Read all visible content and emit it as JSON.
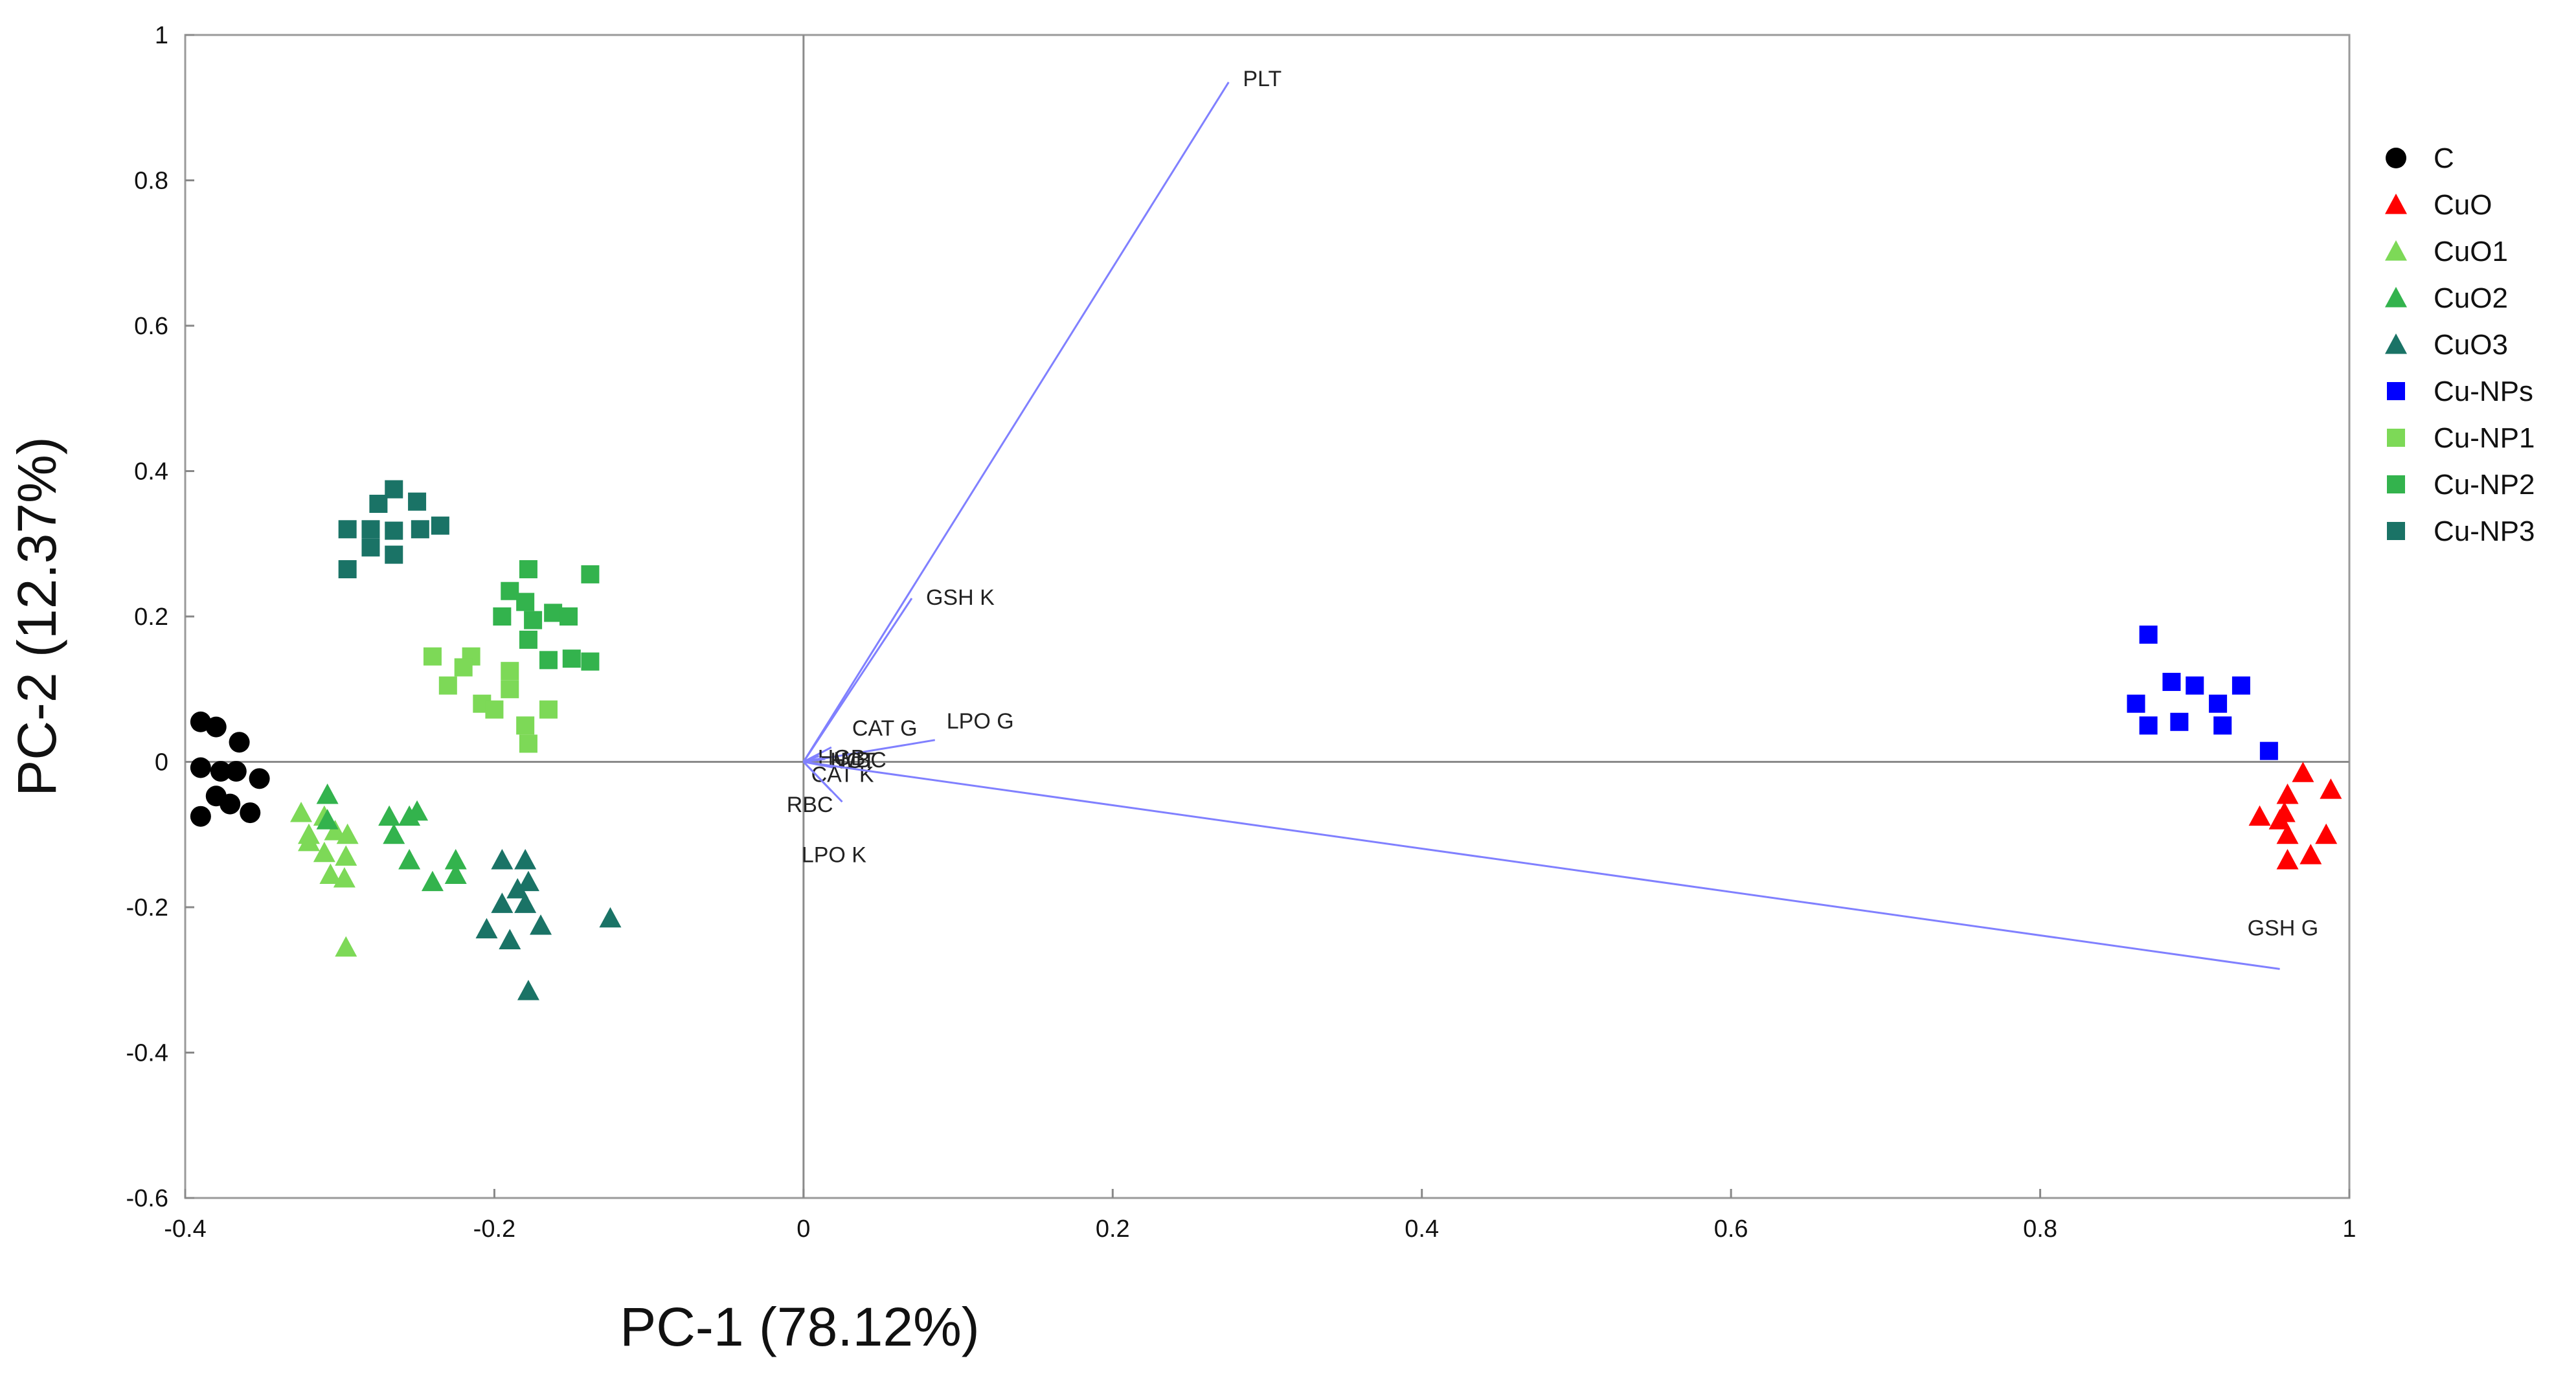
{
  "chart_data": {
    "type": "scatter",
    "xlabel": "PC-1 (78.12%)",
    "ylabel": "PC-2 (12.37%)",
    "xlim": [
      -0.4,
      1.0
    ],
    "ylim": [
      -0.6,
      1.0
    ],
    "xticks": [
      -0.4,
      -0.2,
      0,
      0.2,
      0.4,
      0.6,
      0.8,
      1
    ],
    "xtick_labels": [
      "-0.4",
      "-0.2",
      "0",
      "0.2",
      "0.4",
      "0.6",
      "0.8",
      "1"
    ],
    "yticks": [
      -0.6,
      -0.4,
      -0.2,
      0,
      0.2,
      0.4,
      0.6,
      0.8,
      1
    ],
    "ytick_labels": [
      "-0.6",
      "-0.4",
      "-0.2",
      "0",
      "0.2",
      "0.4",
      "0.6",
      "0.8",
      "1"
    ],
    "grid": false,
    "zero_lines": true,
    "legend_position": "right",
    "loading_color": "#8080ff",
    "series": [
      {
        "name": "C",
        "marker": "circle",
        "color": "#000000",
        "points": [
          [
            -0.39,
            0.055
          ],
          [
            -0.38,
            0.048
          ],
          [
            -0.365,
            0.027
          ],
          [
            -0.39,
            -0.008
          ],
          [
            -0.377,
            -0.013
          ],
          [
            -0.367,
            -0.013
          ],
          [
            -0.352,
            -0.023
          ],
          [
            -0.38,
            -0.047
          ],
          [
            -0.39,
            -0.075
          ],
          [
            -0.371,
            -0.058
          ],
          [
            -0.358,
            -0.07
          ]
        ]
      },
      {
        "name": "CuO",
        "marker": "triangle",
        "color": "#ff0000",
        "points": [
          [
            0.97,
            -0.015
          ],
          [
            0.988,
            -0.038
          ],
          [
            0.96,
            -0.045
          ],
          [
            0.942,
            -0.075
          ],
          [
            0.958,
            -0.07
          ],
          [
            0.96,
            -0.1
          ],
          [
            0.985,
            -0.1
          ],
          [
            0.975,
            -0.128
          ],
          [
            0.96,
            -0.135
          ],
          [
            0.955,
            -0.08
          ]
        ]
      },
      {
        "name": "CuO1",
        "marker": "triangle",
        "color": "#7dd957",
        "points": [
          [
            -0.325,
            -0.07
          ],
          [
            -0.31,
            -0.075
          ],
          [
            -0.32,
            -0.1
          ],
          [
            -0.32,
            -0.11
          ],
          [
            -0.303,
            -0.095
          ],
          [
            -0.295,
            -0.1
          ],
          [
            -0.31,
            -0.125
          ],
          [
            -0.296,
            -0.13
          ],
          [
            -0.306,
            -0.155
          ],
          [
            -0.297,
            -0.16
          ],
          [
            -0.296,
            -0.255
          ]
        ]
      },
      {
        "name": "CuO2",
        "marker": "triangle",
        "color": "#33b34d",
        "points": [
          [
            -0.308,
            -0.045
          ],
          [
            -0.308,
            -0.08
          ],
          [
            -0.268,
            -0.075
          ],
          [
            -0.255,
            -0.075
          ],
          [
            -0.25,
            -0.068
          ],
          [
            -0.265,
            -0.1
          ],
          [
            -0.255,
            -0.135
          ],
          [
            -0.24,
            -0.165
          ],
          [
            -0.225,
            -0.135
          ],
          [
            -0.225,
            -0.155
          ]
        ]
      },
      {
        "name": "CuO3",
        "marker": "triangle",
        "color": "#1a7366",
        "points": [
          [
            -0.195,
            -0.135
          ],
          [
            -0.18,
            -0.135
          ],
          [
            -0.185,
            -0.175
          ],
          [
            -0.178,
            -0.165
          ],
          [
            -0.195,
            -0.195
          ],
          [
            -0.18,
            -0.195
          ],
          [
            -0.205,
            -0.23
          ],
          [
            -0.19,
            -0.245
          ],
          [
            -0.17,
            -0.225
          ],
          [
            -0.125,
            -0.215
          ],
          [
            -0.178,
            -0.315
          ]
        ]
      },
      {
        "name": "Cu-NPs",
        "marker": "square",
        "color": "#0000ff",
        "points": [
          [
            0.87,
            0.175
          ],
          [
            0.885,
            0.11
          ],
          [
            0.9,
            0.105
          ],
          [
            0.93,
            0.105
          ],
          [
            0.862,
            0.08
          ],
          [
            0.915,
            0.08
          ],
          [
            0.87,
            0.05
          ],
          [
            0.89,
            0.055
          ],
          [
            0.918,
            0.05
          ],
          [
            0.948,
            0.015
          ]
        ]
      },
      {
        "name": "Cu-NP1",
        "marker": "square",
        "color": "#7dd957",
        "points": [
          [
            -0.24,
            0.145
          ],
          [
            -0.215,
            0.145
          ],
          [
            -0.22,
            0.13
          ],
          [
            -0.19,
            0.125
          ],
          [
            -0.23,
            0.105
          ],
          [
            -0.19,
            0.1
          ],
          [
            -0.208,
            0.08
          ],
          [
            -0.2,
            0.072
          ],
          [
            -0.165,
            0.072
          ],
          [
            -0.18,
            0.05
          ],
          [
            -0.178,
            0.025
          ]
        ]
      },
      {
        "name": "Cu-NP2",
        "marker": "square",
        "color": "#33b34d",
        "points": [
          [
            -0.178,
            0.265
          ],
          [
            -0.138,
            0.258
          ],
          [
            -0.19,
            0.235
          ],
          [
            -0.18,
            0.22
          ],
          [
            -0.175,
            0.195
          ],
          [
            -0.162,
            0.205
          ],
          [
            -0.152,
            0.2
          ],
          [
            -0.195,
            0.2
          ],
          [
            -0.178,
            0.168
          ],
          [
            -0.165,
            0.14
          ],
          [
            -0.15,
            0.142
          ],
          [
            -0.138,
            0.138
          ]
        ]
      },
      {
        "name": "Cu-NP3",
        "marker": "square",
        "color": "#1a7366",
        "points": [
          [
            -0.265,
            0.375
          ],
          [
            -0.25,
            0.358
          ],
          [
            -0.275,
            0.355
          ],
          [
            -0.295,
            0.32
          ],
          [
            -0.28,
            0.32
          ],
          [
            -0.265,
            0.318
          ],
          [
            -0.248,
            0.32
          ],
          [
            -0.235,
            0.325
          ],
          [
            -0.28,
            0.295
          ],
          [
            -0.265,
            0.285
          ],
          [
            -0.295,
            0.265
          ]
        ]
      }
    ],
    "loadings": [
      {
        "label": "PLT",
        "x": 0.275,
        "y": 0.935
      },
      {
        "label": "GSH K",
        "x": 0.07,
        "y": 0.225
      },
      {
        "label": "CAT G",
        "x": 0.018,
        "y": 0.02
      },
      {
        "label": "LPO G",
        "x": 0.085,
        "y": 0.03
      },
      {
        "label": "HGB",
        "x": 0.01,
        "y": 0.008
      },
      {
        "label": "WBC",
        "x": 0.012,
        "y": 0.005
      },
      {
        "label": "HCT",
        "x": 0.014,
        "y": 0.004
      },
      {
        "label": "CAT K",
        "x": 0.02,
        "y": -0.008
      },
      {
        "label": "RBC",
        "x": 0.025,
        "y": -0.055
      },
      {
        "label": "LPO K",
        "x": 0.018,
        "y": -0.04
      },
      {
        "label": "GSH G",
        "x": 0.955,
        "y": -0.285
      }
    ]
  }
}
